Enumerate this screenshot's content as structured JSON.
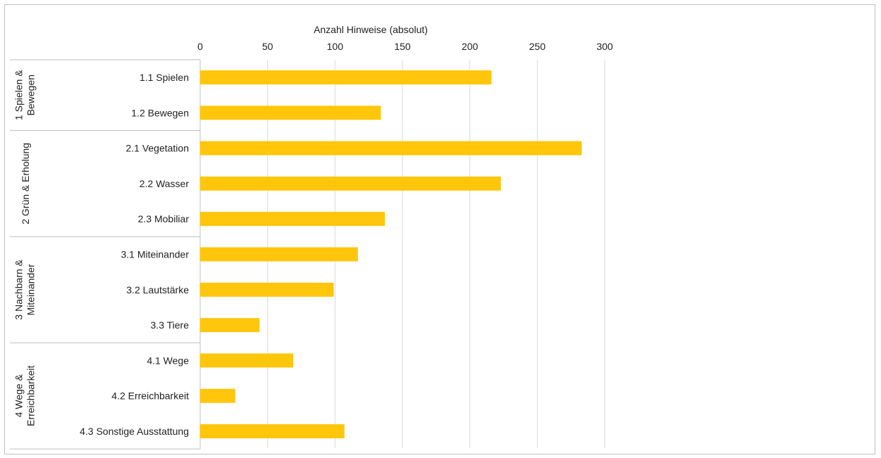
{
  "chart_data": {
    "type": "bar",
    "orientation": "horizontal",
    "xlabel": "Anzahl Hinweise (absolut)",
    "xlim": [
      0,
      300
    ],
    "xticks": [
      "0",
      "50",
      "100",
      "150",
      "200",
      "250",
      "300"
    ],
    "grid": true,
    "bar_color": "#ffc60b",
    "groups": [
      {
        "label": "1 Spielen & Bewegen",
        "label_lines": [
          "1 Spielen &",
          "Bewegen"
        ],
        "categories": [
          "1.1 Spielen",
          "1.2 Bewegen"
        ]
      },
      {
        "label": "2 Grün & Erholung",
        "label_lines": [
          "2 Grün & Erholung"
        ],
        "categories": [
          "2.1 Vegetation",
          "2.2 Wasser",
          "2.3 Mobiliar"
        ]
      },
      {
        "label": "3 Nachbarn & Miteinander",
        "label_lines": [
          "3 Nachbarn &",
          "Miteinander"
        ],
        "categories": [
          "3.1 Miteinander",
          "3.2 Lautstärke",
          "3.3 Tiere"
        ]
      },
      {
        "label": "4 Wege & Erreichbarkeit",
        "label_lines": [
          "4 Wege &",
          "Erreichbarkeit"
        ],
        "categories": [
          "4.1 Wege",
          "4.2 Erreichbarkeit",
          "4.3 Sonstige Ausstattung"
        ]
      }
    ],
    "categories": [
      "1.1 Spielen",
      "1.2 Bewegen",
      "2.1 Vegetation",
      "2.2 Wasser",
      "2.3 Mobiliar",
      "3.1 Miteinander",
      "3.2 Lautstärke",
      "3.3 Tiere",
      "4.1 Wege",
      "4.2 Erreichbarkeit",
      "4.3 Sonstige Ausstattung"
    ],
    "values": [
      216,
      134,
      283,
      223,
      137,
      117,
      99,
      44,
      69,
      26,
      107
    ]
  }
}
